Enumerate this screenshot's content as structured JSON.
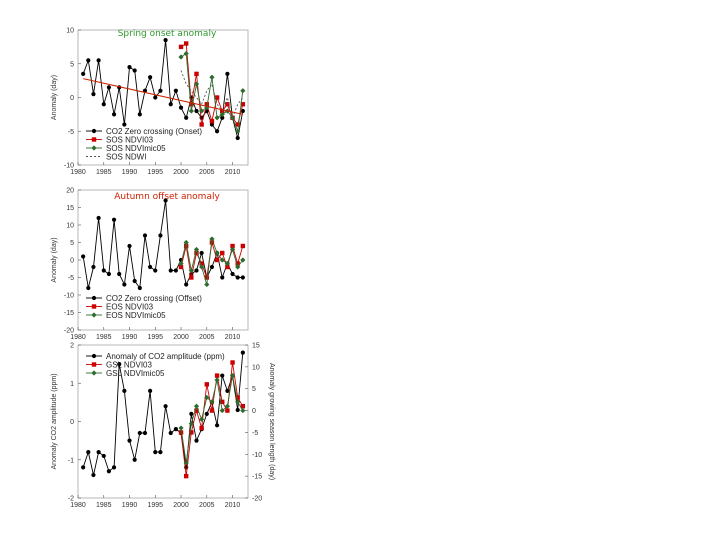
{
  "chart_data": [
    {
      "type": "line",
      "title": "Spring onset anomaly",
      "title_color": "#2e9a2e",
      "ylabel": "Anomaly (day)",
      "xlim": [
        1980,
        2013
      ],
      "ylim": [
        -10,
        10
      ],
      "yticks": [
        -10,
        -5,
        0,
        5,
        10
      ],
      "xticks": [
        1980,
        1985,
        1990,
        1995,
        2000,
        2005,
        2010
      ],
      "legend_position": "bottom-left",
      "series": [
        {
          "name": "CO2 Zero crossing (Onset)",
          "color": "#000000",
          "marker": "circle",
          "dash": "",
          "x": [
            1981,
            1982,
            1983,
            1984,
            1985,
            1986,
            1987,
            1988,
            1989,
            1990,
            1991,
            1992,
            1993,
            1994,
            1995,
            1996,
            1997,
            1998,
            1999,
            2000,
            2001,
            2002,
            2003,
            2004,
            2005,
            2006,
            2007,
            2008,
            2009,
            2010,
            2011,
            2012
          ],
          "values": [
            3.5,
            5.5,
            0.5,
            5.5,
            -1,
            1.5,
            -2.5,
            1.5,
            -4,
            4.5,
            4,
            -2.5,
            1,
            3,
            0,
            1,
            8.5,
            -1,
            1,
            -1.5,
            -3,
            0,
            -2,
            -3,
            -2,
            -4,
            -5,
            -3,
            3.5,
            -3,
            -6,
            -2
          ]
        },
        {
          "name": "SOS NDVI03",
          "color": "#cc0000",
          "marker": "square",
          "dash": "",
          "x": [
            2000,
            2001,
            2002,
            2003,
            2004,
            2005,
            2006,
            2007,
            2008,
            2009,
            2010,
            2011,
            2012
          ],
          "values": [
            7.5,
            8,
            -1,
            3.5,
            -4,
            -1,
            -3.5,
            0,
            -2,
            -1,
            -3,
            -4,
            -1
          ]
        },
        {
          "name": "SOS NDVImic05",
          "color": "#2e6b2e",
          "marker": "diamond",
          "dash": "",
          "x": [
            2000,
            2001,
            2002,
            2003,
            2004,
            2005,
            2006,
            2007,
            2008,
            2009,
            2010,
            2011,
            2012
          ],
          "values": [
            6,
            6.5,
            -2,
            2,
            -2,
            -1.5,
            3,
            -3,
            -2.5,
            -2,
            -3,
            -5,
            1
          ]
        },
        {
          "name": "SOS NDWI",
          "color": "#555555",
          "marker": "none",
          "dash": "2,2",
          "x": [
            2000,
            2001,
            2002,
            2003,
            2004,
            2005,
            2006,
            2007,
            2008,
            2009,
            2010,
            2011,
            2012
          ],
          "values": [
            4,
            2,
            1,
            0,
            -1,
            1,
            2,
            -1,
            -2,
            0,
            -3,
            -1,
            0
          ]
        },
        {
          "name": "",
          "color": "#cc2200",
          "marker": "none",
          "dash": "",
          "trend": true,
          "x": [
            1981,
            2012
          ],
          "values": [
            2.8,
            -2.5
          ]
        }
      ]
    },
    {
      "type": "line",
      "title": "Autumn offset anomaly",
      "title_color": "#cc2200",
      "ylabel": "Anomaly (day)",
      "xlim": [
        1980,
        2013
      ],
      "ylim": [
        -20,
        20
      ],
      "yticks": [
        -20,
        -15,
        -10,
        -5,
        0,
        5,
        10,
        15,
        20
      ],
      "xticks": [
        1980,
        1985,
        1990,
        1995,
        2000,
        2005,
        2010
      ],
      "legend_position": "bottom-left",
      "series": [
        {
          "name": "CO2 Zero crossing (Offset)",
          "color": "#000000",
          "marker": "circle",
          "dash": "",
          "x": [
            1981,
            1982,
            1983,
            1984,
            1985,
            1986,
            1987,
            1988,
            1989,
            1990,
            1991,
            1992,
            1993,
            1994,
            1995,
            1996,
            1997,
            1998,
            1999,
            2000,
            2001,
            2002,
            2003,
            2004,
            2005,
            2006,
            2007,
            2008,
            2009,
            2010,
            2011,
            2012
          ],
          "values": [
            1,
            -8,
            -2,
            12,
            -3,
            -4,
            11.5,
            -4,
            -7,
            4,
            -6,
            -8,
            7,
            -2,
            -3,
            7,
            17,
            -3,
            -3,
            0,
            -7,
            -4,
            -3,
            2,
            -5,
            -2,
            2,
            -5,
            -1,
            -4,
            -5,
            -5
          ]
        },
        {
          "name": "EOS NDVI03",
          "color": "#cc0000",
          "marker": "square",
          "dash": "",
          "x": [
            2000,
            2001,
            2002,
            2003,
            2004,
            2005,
            2006,
            2007,
            2008,
            2009,
            2010,
            2011,
            2012
          ],
          "values": [
            -2,
            4,
            -5,
            2,
            -1,
            -5,
            5,
            0,
            2,
            -2,
            4,
            -1,
            4
          ]
        },
        {
          "name": "EOS NDVImic05",
          "color": "#2e6b2e",
          "marker": "diamond",
          "dash": "",
          "x": [
            2000,
            2001,
            2002,
            2003,
            2004,
            2005,
            2006,
            2007,
            2008,
            2009,
            2010,
            2011,
            2012
          ],
          "values": [
            -1,
            5,
            -3,
            3,
            -2,
            -7,
            6,
            2,
            0,
            -1,
            3,
            -2,
            0
          ]
        }
      ]
    },
    {
      "type": "line",
      "title": "",
      "ylabel": "Anomaly CO2 amplitude (ppm)",
      "y2label": "Anomaly growing season length (day)",
      "xlim": [
        1980,
        2013
      ],
      "ylim": [
        -2,
        2
      ],
      "yticks": [
        -2,
        -1,
        0,
        1,
        2
      ],
      "y2lim": [
        -20,
        15
      ],
      "y2ticks": [
        -20,
        -15,
        -10,
        -5,
        0,
        5,
        10,
        15
      ],
      "xticks": [
        1980,
        1985,
        1990,
        1995,
        2000,
        2005,
        2010
      ],
      "legend_position": "top-left",
      "series": [
        {
          "name": "Anomaly of CO2 amplitude (ppm)",
          "color": "#000000",
          "marker": "circle",
          "dash": "",
          "axis": "left",
          "x": [
            1981,
            1982,
            1983,
            1984,
            1985,
            1986,
            1987,
            1988,
            1989,
            1990,
            1991,
            1992,
            1993,
            1994,
            1995,
            1996,
            1997,
            1998,
            1999,
            2000,
            2001,
            2002,
            2003,
            2004,
            2005,
            2006,
            2007,
            2008,
            2009,
            2010,
            2011,
            2012
          ],
          "values": [
            -1.2,
            -0.8,
            -1.4,
            -0.8,
            -0.9,
            -1.3,
            -1.2,
            1.5,
            0.8,
            -0.5,
            -1,
            -0.3,
            -0.3,
            0.8,
            -0.8,
            -0.8,
            0.4,
            -0.3,
            -0.2,
            -0.3,
            -1.2,
            0.2,
            -0.5,
            -0.2,
            0.2,
            0.5,
            -0.1,
            1.2,
            0.8,
            1.2,
            0.3,
            1.8
          ]
        },
        {
          "name": "GSL NDVI03",
          "color": "#cc0000",
          "marker": "square",
          "dash": "",
          "axis": "right",
          "x": [
            2000,
            2001,
            2002,
            2003,
            2004,
            2005,
            2006,
            2007,
            2008,
            2009,
            2010,
            2011,
            2012
          ],
          "values": [
            -5,
            -15,
            -5,
            0,
            -4,
            6,
            0,
            8,
            2,
            0,
            11,
            3,
            1
          ]
        },
        {
          "name": "GSL NDVImic05",
          "color": "#2e6b2e",
          "marker": "diamond",
          "dash": "",
          "axis": "right",
          "x": [
            2000,
            2001,
            2002,
            2003,
            2004,
            2005,
            2006,
            2007,
            2008,
            2009,
            2010,
            2011,
            2012
          ],
          "values": [
            -4,
            -12,
            -3,
            1,
            -2,
            3,
            2,
            7,
            0,
            1,
            8,
            2,
            0
          ]
        }
      ]
    }
  ]
}
